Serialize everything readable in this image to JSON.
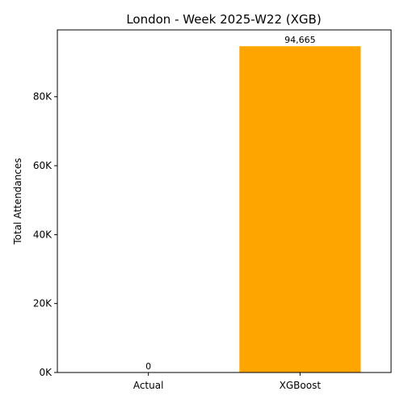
{
  "chart_data": {
    "type": "bar",
    "title": "London - Week 2025-W22 (XGB)",
    "xlabel": "",
    "ylabel": "Total Attendances",
    "categories": [
      "Actual",
      "XGBoost"
    ],
    "values": [
      0,
      94665
    ],
    "data_labels": [
      "0",
      "94,665"
    ],
    "bar_colors": [
      "#1f77b4",
      "#FFA500"
    ],
    "ylim": [
      0,
      99398
    ],
    "yticks": [
      0,
      20000,
      40000,
      60000,
      80000
    ],
    "ytick_labels": [
      "0K",
      "20K",
      "40K",
      "60K",
      "80K"
    ],
    "grid": false,
    "legend": "none"
  }
}
